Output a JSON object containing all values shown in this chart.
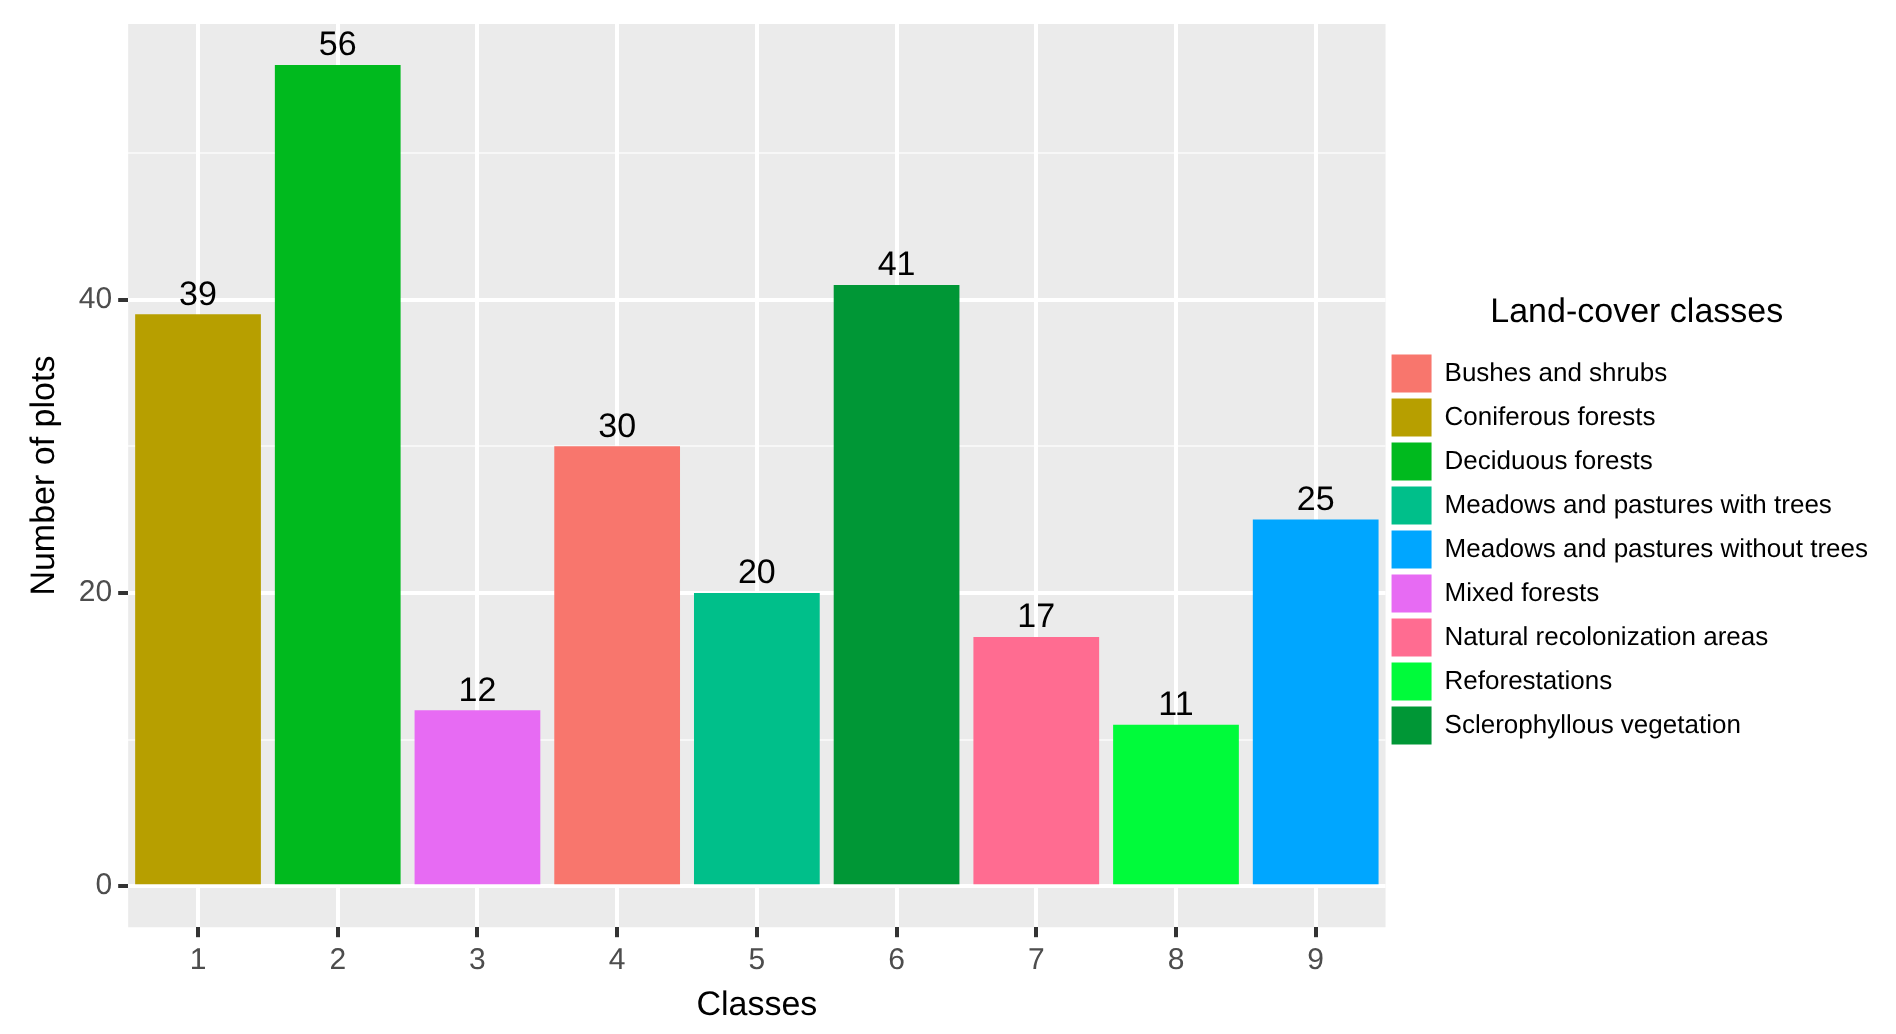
{
  "chart_data": {
    "type": "bar",
    "xlabel": "Classes",
    "ylabel": "Number of plots",
    "legend_title": "Land-cover classes",
    "categories": [
      "1",
      "2",
      "3",
      "4",
      "5",
      "6",
      "7",
      "8",
      "9"
    ],
    "series": [
      {
        "name": "Bushes and shrubs",
        "color": "#f8766d",
        "values": [
          null,
          null,
          null,
          30,
          null,
          null,
          null,
          null,
          null
        ]
      },
      {
        "name": "Coniferous forests",
        "color": "#b79f00",
        "values": [
          39,
          null,
          null,
          null,
          null,
          null,
          null,
          null,
          null
        ]
      },
      {
        "name": "Deciduous forests",
        "color": "#00ba1e",
        "values": [
          null,
          56,
          null,
          null,
          null,
          null,
          null,
          null,
          null
        ]
      },
      {
        "name": "Meadows and pastures with trees",
        "color": "#00bf8a",
        "values": [
          null,
          null,
          null,
          null,
          20,
          null,
          null,
          null,
          null
        ]
      },
      {
        "name": "Meadows and pastures without trees",
        "color": "#00a6ff",
        "values": [
          null,
          null,
          null,
          null,
          null,
          null,
          null,
          null,
          25
        ]
      },
      {
        "name": "Mixed forests",
        "color": "#e76bf3",
        "values": [
          null,
          null,
          12,
          null,
          null,
          null,
          null,
          null,
          null
        ]
      },
      {
        "name": "Natural recolonization areas",
        "color": "#ff6c91",
        "values": [
          null,
          null,
          null,
          null,
          null,
          null,
          17,
          null,
          null
        ]
      },
      {
        "name": "Reforestations",
        "color": "#00fb3a",
        "values": [
          null,
          null,
          null,
          null,
          null,
          null,
          null,
          11,
          null
        ]
      },
      {
        "name": "Sclerophyllous vegetation",
        "color": "#009736",
        "values": [
          null,
          null,
          null,
          null,
          null,
          41,
          null,
          null,
          null
        ]
      }
    ],
    "ylim": [
      -2.8,
      58.8
    ],
    "yticks": [
      0,
      {
        "value": 10,
        "label": null
      },
      20,
      {
        "value": 30,
        "label": null
      },
      40,
      {
        "value": 50,
        "label": null
      }
    ],
    "grid": true,
    "legend": "right",
    "data_labels": true
  }
}
